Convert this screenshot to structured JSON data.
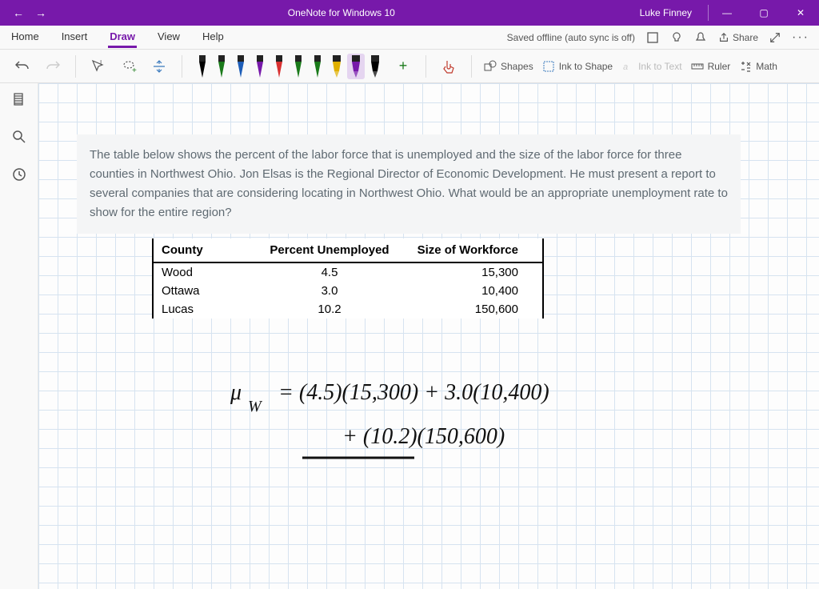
{
  "titlebar": {
    "app_title": "OneNote for Windows 10",
    "user": "Luke Finney"
  },
  "menu": {
    "tabs": [
      "Home",
      "Insert",
      "Draw",
      "View",
      "Help"
    ],
    "active_tab": "Draw",
    "save_status": "Saved offline (auto sync is off)",
    "share_label": "Share"
  },
  "toolbar": {
    "shapes": "Shapes",
    "ink_to_shape": "Ink to Shape",
    "ink_to_text": "Ink to Text",
    "ruler": "Ruler",
    "math": "Math",
    "pen_colors": [
      "#000000",
      "#1a7a1a",
      "#1e5eb8",
      "#7719aa",
      "#d93030",
      "#1a7a1a",
      "#1a7a1a",
      "#e0b000",
      "#7719aa",
      "#000000"
    ],
    "selected_pen_index": 8
  },
  "problem": {
    "text": "The table below shows the percent of the labor force that is unemployed and the size of the labor force for three counties in Northwest Ohio. Jon Elsas is the Regional Director of Economic Development. He must present a report to several companies that are considering locating in Northwest Ohio. What would be an appropriate unemployment rate to show for the entire region?"
  },
  "table": {
    "headers": {
      "county": "County",
      "pct": "Percent Unemployed",
      "size": "Size of Workforce"
    },
    "rows": [
      {
        "county": "Wood",
        "pct": "4.5",
        "size": "15,300"
      },
      {
        "county": "Ottawa",
        "pct": "3.0",
        "size": "10,400"
      },
      {
        "county": "Lucas",
        "pct": "10.2",
        "size": "150,600"
      }
    ]
  },
  "handwriting": {
    "line1": "μ    =   (4.5)(15,300) + 3.0(10,400)",
    "sub": "W",
    "line2": "+ (10.2)(150,600)"
  }
}
